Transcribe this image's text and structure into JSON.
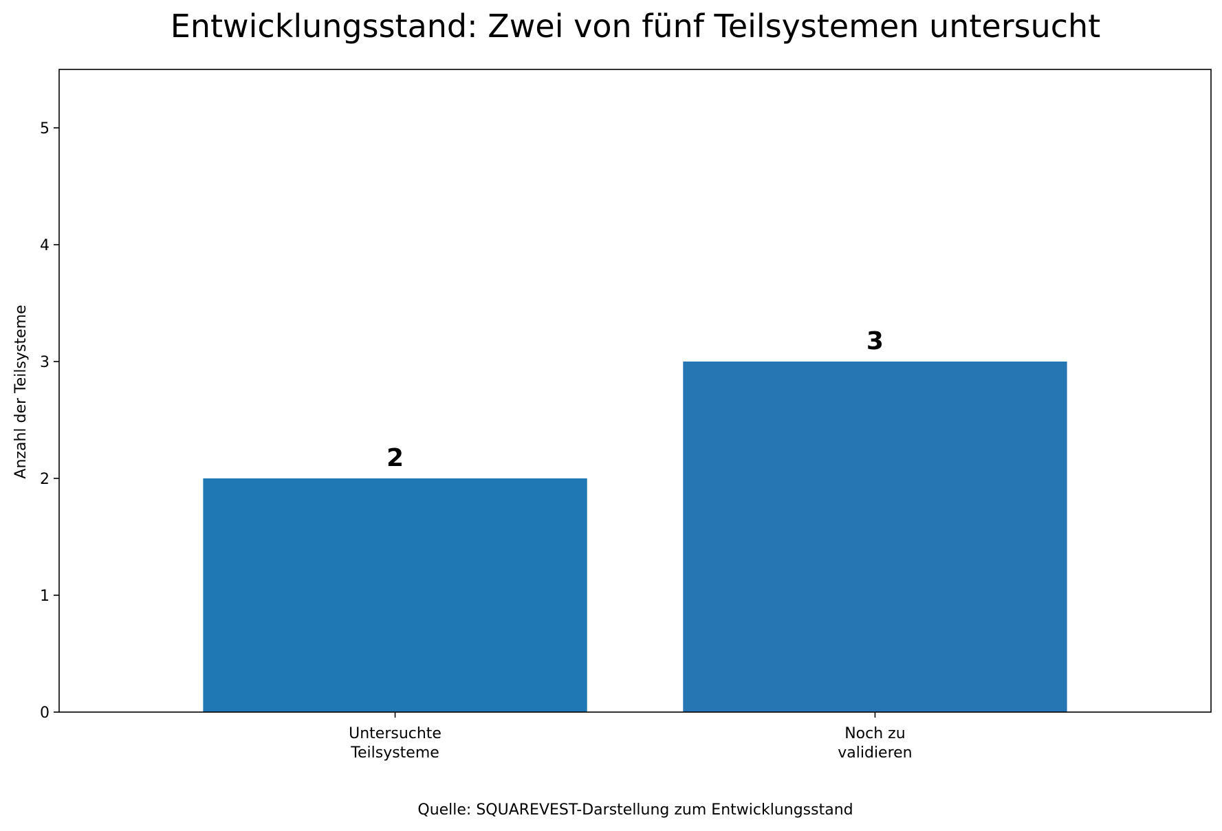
{
  "chart_data": {
    "type": "bar",
    "title": "Entwicklungsstand: Zwei von fünf Teilsystemen untersucht",
    "xlabel": "",
    "ylabel": "Anzahl der Teilsysteme",
    "categories": [
      [
        "Untersuchte",
        "Teilsysteme"
      ],
      [
        "Noch zu",
        "validieren"
      ]
    ],
    "values": [
      2,
      3
    ],
    "value_labels": [
      "2",
      "3"
    ],
    "ylim": [
      0,
      5.5
    ],
    "yticks": [
      "0",
      "1",
      "2",
      "3",
      "4",
      "5"
    ],
    "bar_colors": [
      "#1f77b4",
      "#2676b3"
    ],
    "grid": false,
    "legend": "none",
    "source_note": "Quelle: SQUAREVEST-Darstellung zum Entwicklungsstand"
  }
}
